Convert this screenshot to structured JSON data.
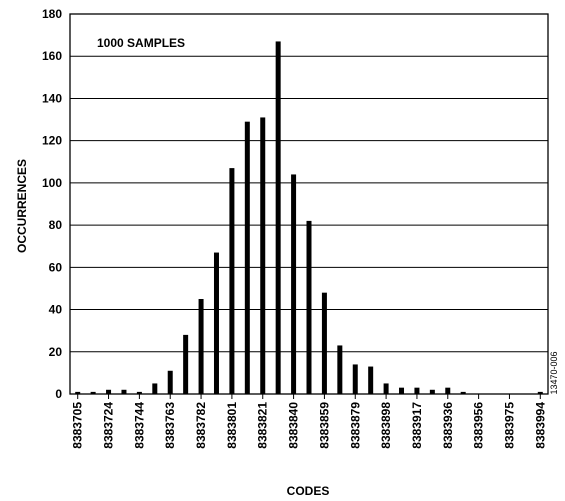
{
  "chart_data": {
    "type": "bar",
    "xlabel": "CODES",
    "ylabel": "OCCURRENCES",
    "ylim": [
      0,
      180
    ],
    "yticks": [
      0,
      20,
      40,
      60,
      80,
      100,
      120,
      140,
      160,
      180
    ],
    "grid": "horizontal",
    "annotation": "1000 SAMPLES",
    "x_tick_labels": [
      "8383705",
      "8383724",
      "8383744",
      "8383763",
      "8383782",
      "8383801",
      "8383821",
      "8383840",
      "8383859",
      "8383879",
      "8383898",
      "8383917",
      "8383936",
      "8383956",
      "8383975",
      "8383994"
    ],
    "bars": [
      {
        "category": "8383705",
        "value": 1
      },
      {
        "category": "",
        "value": 1
      },
      {
        "category": "8383724",
        "value": 2
      },
      {
        "category": "",
        "value": 2
      },
      {
        "category": "8383744",
        "value": 1
      },
      {
        "category": "",
        "value": 5
      },
      {
        "category": "8383763",
        "value": 11
      },
      {
        "category": "",
        "value": 28
      },
      {
        "category": "8383782",
        "value": 45
      },
      {
        "category": "",
        "value": 67
      },
      {
        "category": "8383801",
        "value": 107
      },
      {
        "category": "",
        "value": 129
      },
      {
        "category": "8383821",
        "value": 131
      },
      {
        "category": "",
        "value": 167
      },
      {
        "category": "8383840",
        "value": 104
      },
      {
        "category": "",
        "value": 82
      },
      {
        "category": "8383859",
        "value": 48
      },
      {
        "category": "",
        "value": 23
      },
      {
        "category": "8383879",
        "value": 14
      },
      {
        "category": "",
        "value": 13
      },
      {
        "category": "8383898",
        "value": 5
      },
      {
        "category": "",
        "value": 3
      },
      {
        "category": "8383917",
        "value": 3
      },
      {
        "category": "",
        "value": 2
      },
      {
        "category": "8383936",
        "value": 3
      },
      {
        "category": "",
        "value": 1
      },
      {
        "category": "8383956",
        "value": 0
      },
      {
        "category": "",
        "value": 0
      },
      {
        "category": "8383975",
        "value": 0
      },
      {
        "category": "",
        "value": 0
      },
      {
        "category": "8383994",
        "value": 1
      }
    ]
  },
  "figure_id": "13470-006"
}
